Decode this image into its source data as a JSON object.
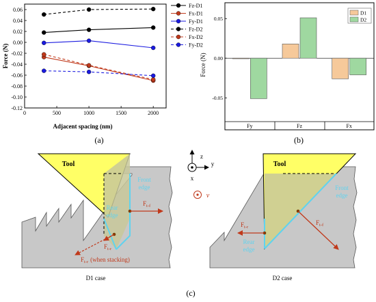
{
  "panels": {
    "a_label": "(a)",
    "b_label": "(b)",
    "c_label": "(c)"
  },
  "chart_data": [
    {
      "type": "line",
      "panel": "(a)",
      "xlabel": "Adjacent spacing (nm)",
      "ylabel": "Force (N)",
      "xlim": [
        0,
        2200
      ],
      "ylim": [
        -0.12,
        0.07
      ],
      "x": [
        300,
        1000,
        2000
      ],
      "xticks": [
        0,
        500,
        1000,
        1500,
        2000
      ],
      "yticks": [
        -0.12,
        -0.1,
        -0.08,
        -0.06,
        -0.04,
        -0.02,
        0.0,
        0.02,
        0.04,
        0.06
      ],
      "ytick_labels": [
        "-0.12",
        "-0.10",
        "-0.08",
        "-0.06",
        "-0.04",
        "-0.02",
        "0.00",
        "0.02",
        "0.04",
        "0.06"
      ],
      "legend_position": "top-right",
      "series": [
        {
          "name": "Fz-D1",
          "values": [
            0.018,
            0.023,
            0.027
          ],
          "color": "#000000",
          "dash": false
        },
        {
          "name": "Fx-D1",
          "values": [
            -0.027,
            -0.043,
            -0.07
          ],
          "color": "#c0391b",
          "dash": false
        },
        {
          "name": "Fy-D1",
          "values": [
            -0.001,
            0.003,
            -0.01
          ],
          "color": "#1a1ae0",
          "dash": false
        },
        {
          "name": "Fz-D2",
          "values": [
            0.051,
            0.06,
            0.061
          ],
          "color": "#000000",
          "dash": true
        },
        {
          "name": "Fx-D2",
          "values": [
            -0.022,
            -0.042,
            -0.068
          ],
          "color": "#c0391b",
          "dash": true
        },
        {
          "name": "Fy-D2",
          "values": [
            -0.052,
            -0.054,
            -0.061
          ],
          "color": "#1a1ae0",
          "dash": true
        }
      ]
    },
    {
      "type": "bar",
      "panel": "(b)",
      "ylabel": "Force (N)",
      "categories": [
        "Fy",
        "Fz",
        "Fx"
      ],
      "ylim": [
        -0.08,
        0.07
      ],
      "yticks": [
        -0.05,
        0.0,
        0.05
      ],
      "ytick_labels": [
        "-0.05",
        "0.00",
        "0.05"
      ],
      "legend_position": "top-right",
      "series": [
        {
          "name": "D1",
          "values": [
            0.0,
            0.018,
            -0.026
          ],
          "color": "#f6c99a"
        },
        {
          "name": "D2",
          "values": [
            -0.051,
            0.051,
            -0.021
          ],
          "color": "#9fd8a0"
        }
      ]
    }
  ],
  "diagram": {
    "axes": {
      "z": "z",
      "y": "y",
      "x": "x",
      "v": "v"
    },
    "d1": {
      "tool": "Tool",
      "front_edge": [
        "Front",
        "edge"
      ],
      "rear_edge": [
        "Rear",
        "edge"
      ],
      "f_t_f": "F",
      "f_t_f_sub": "t-f",
      "f_t_r": "F",
      "f_t_r_sub": "t-r",
      "f_t_r2": "F",
      "f_t_r2_sub": "t-r",
      "stacking": "(when stacking)",
      "caption": "D1 case"
    },
    "d2": {
      "tool": "Tool",
      "front_edge": [
        "Front",
        "edge"
      ],
      "rear_edge": [
        "Rear",
        "edge"
      ],
      "f_t_r": "F",
      "f_t_r_sub": "t-r",
      "f_t_f": "F",
      "f_t_f_sub": "t-f",
      "caption": "D2 case"
    }
  }
}
